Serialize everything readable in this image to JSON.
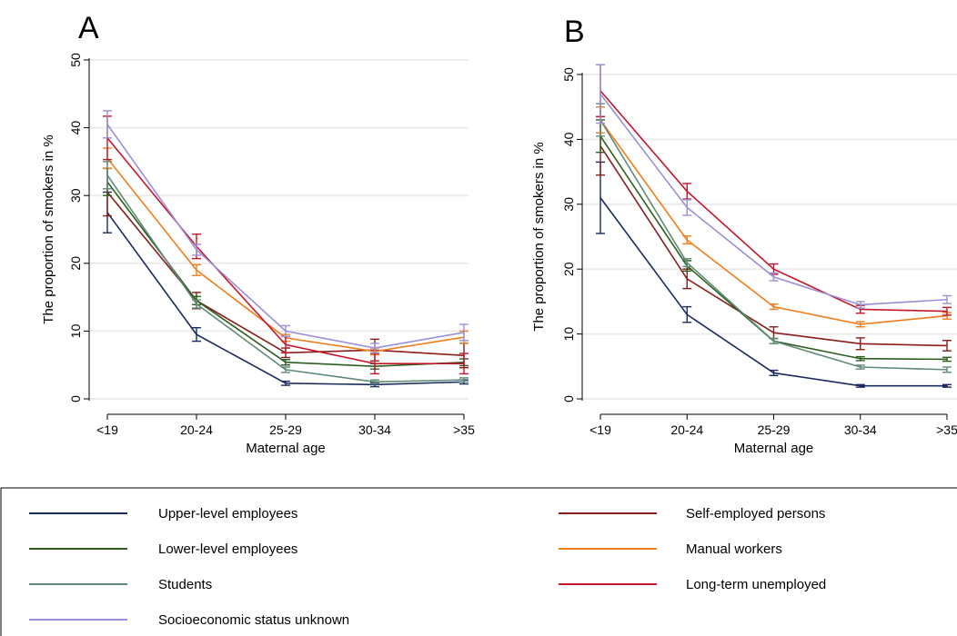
{
  "legend": [
    {
      "label": "Upper-level employees",
      "color": "#1a2b5e"
    },
    {
      "label": "Self-employed persons",
      "color": "#8b1c1c"
    },
    {
      "label": "Lower-level employees",
      "color": "#2e5e1e"
    },
    {
      "label": "Manual workers",
      "color": "#f07d1a"
    },
    {
      "label": "Students",
      "color": "#5f8a78"
    },
    {
      "label": "Long-term unemployed",
      "color": "#c4162a"
    },
    {
      "label": "Socioeconomic status unknown",
      "color": "#9a8fd6"
    }
  ],
  "chart_data": [
    {
      "panel": "A",
      "type": "line",
      "categories": [
        "<19",
        "20-24",
        "25-29",
        "30-34",
        ">35"
      ],
      "xlabel": "Maternal age",
      "ylabel": "The proportion of smokers in %",
      "ylim": [
        0,
        50
      ],
      "yticks": [
        "0",
        "10",
        "20",
        "30",
        "40",
        "50"
      ],
      "series": [
        {
          "name": "Upper-level employees",
          "color": "#1a2b5e",
          "values": [
            27.5,
            9.5,
            2.3,
            2.1,
            2.5
          ],
          "err": [
            3.0,
            1.0,
            0.3,
            0.3,
            0.3
          ]
        },
        {
          "name": "Self-employed persons",
          "color": "#8b1c1c",
          "values": [
            30.5,
            14.5,
            6.8,
            7.2,
            6.4
          ],
          "err": [
            3.5,
            1.2,
            0.7,
            1.6,
            1.8
          ]
        },
        {
          "name": "Lower-level employees",
          "color": "#2e5e1e",
          "values": [
            32.0,
            14.5,
            5.4,
            4.8,
            5.4
          ],
          "err": [
            2.0,
            0.6,
            0.4,
            0.4,
            0.5
          ]
        },
        {
          "name": "Manual workers",
          "color": "#f07d1a",
          "values": [
            35.5,
            19.0,
            9.0,
            7.0,
            9.1
          ],
          "err": [
            1.5,
            0.8,
            0.5,
            0.5,
            0.9
          ]
        },
        {
          "name": "Students",
          "color": "#5f8a78",
          "values": [
            33.0,
            14.0,
            4.3,
            2.5,
            2.8
          ],
          "err": [
            2.0,
            0.6,
            0.4,
            0.3,
            0.3
          ]
        },
        {
          "name": "Long-term unemployed",
          "color": "#c4162a",
          "values": [
            38.5,
            22.5,
            8.0,
            5.2,
            5.2
          ],
          "err": [
            3.2,
            1.8,
            1.2,
            1.5,
            1.5
          ]
        },
        {
          "name": "Socioeconomic status unknown",
          "color": "#9a8fd6",
          "values": [
            40.5,
            22.0,
            10.0,
            7.5,
            9.8
          ],
          "err": [
            2.0,
            0.8,
            0.8,
            0.7,
            1.2
          ]
        }
      ]
    },
    {
      "panel": "B",
      "type": "line",
      "categories": [
        "<19",
        "20-24",
        "25-29",
        "30-34",
        ">35"
      ],
      "xlabel": "Maternal age",
      "ylabel": "The proportion of smokers in %",
      "ylim": [
        0,
        50
      ],
      "yticks": [
        "0",
        "10",
        "20",
        "30",
        "40",
        "50"
      ],
      "series": [
        {
          "name": "Upper-level employees",
          "color": "#1a2b5e",
          "values": [
            31.0,
            13.0,
            4.0,
            2.0,
            2.0
          ],
          "err": [
            5.5,
            1.2,
            0.4,
            0.2,
            0.2
          ]
        },
        {
          "name": "Self-employed persons",
          "color": "#8b1c1c",
          "values": [
            39.0,
            18.5,
            10.2,
            8.5,
            8.2
          ],
          "err": [
            4.5,
            1.5,
            0.9,
            0.9,
            0.8
          ]
        },
        {
          "name": "Lower-level employees",
          "color": "#2e5e1e",
          "values": [
            40.5,
            20.5,
            8.9,
            6.2,
            6.1
          ],
          "err": [
            2.5,
            0.8,
            0.4,
            0.3,
            0.3
          ]
        },
        {
          "name": "Manual workers",
          "color": "#f07d1a",
          "values": [
            43.0,
            24.5,
            14.2,
            11.5,
            12.8
          ],
          "err": [
            2.0,
            0.6,
            0.4,
            0.4,
            0.5
          ]
        },
        {
          "name": "Students",
          "color": "#5f8a78",
          "values": [
            43.0,
            21.0,
            8.9,
            4.9,
            4.5
          ],
          "err": [
            2.5,
            0.6,
            0.4,
            0.3,
            0.4
          ]
        },
        {
          "name": "Long-term unemployed",
          "color": "#c4162a",
          "values": [
            47.5,
            32.0,
            20.0,
            13.8,
            13.5
          ],
          "err": [
            4.0,
            1.2,
            0.8,
            0.6,
            0.6
          ]
        },
        {
          "name": "Socioeconomic status unknown",
          "color": "#9a8fd6",
          "values": [
            47.0,
            29.5,
            18.8,
            14.5,
            15.3
          ],
          "err": [
            4.5,
            1.2,
            0.6,
            0.5,
            0.6
          ]
        }
      ]
    }
  ]
}
